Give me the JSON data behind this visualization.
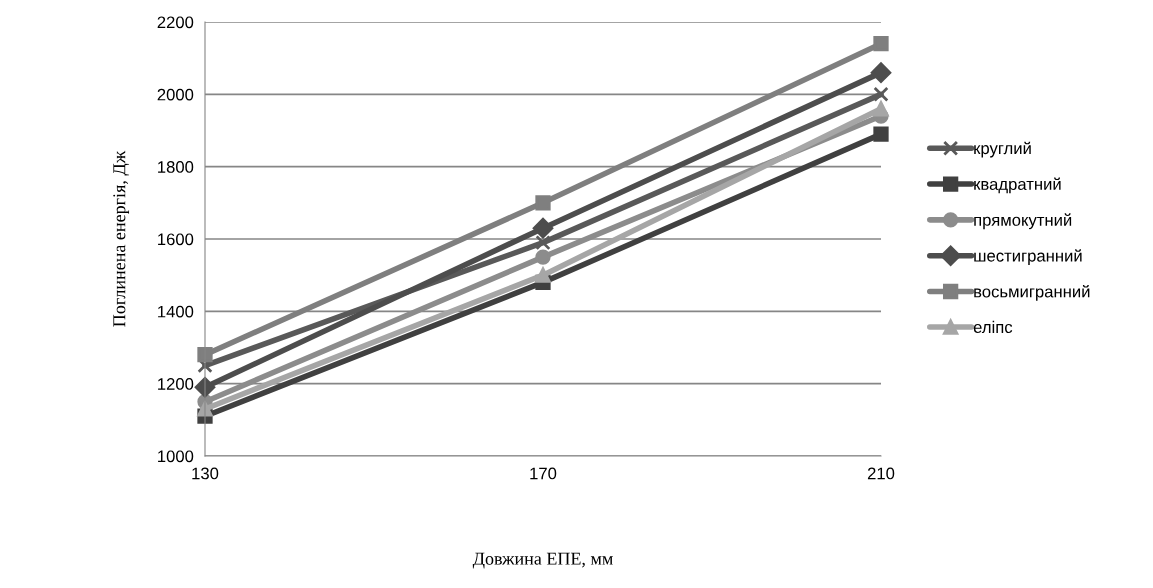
{
  "chart_data": {
    "type": "line",
    "xlabel": "Довжина ЕПЕ, мм",
    "ylabel": "Поглинена енергія, Дж",
    "x": [
      130,
      170,
      210
    ],
    "xlim": [
      130,
      210
    ],
    "xticks": [
      130,
      170,
      210
    ],
    "ylim": [
      1000,
      2200
    ],
    "yticks": [
      1000,
      1200,
      1400,
      1600,
      1800,
      2000,
      2200
    ],
    "grid": "y",
    "legend": "right",
    "series": [
      {
        "name": "круглий",
        "color": "#595959",
        "marker": "cross",
        "values": [
          1250,
          1590,
          2000
        ]
      },
      {
        "name": "квадратний",
        "color": "#404040",
        "marker": "square",
        "values": [
          1110,
          1480,
          1890
        ]
      },
      {
        "name": "прямокутний",
        "color": "#8c8c8c",
        "marker": "circle",
        "values": [
          1150,
          1550,
          1940
        ]
      },
      {
        "name": "шестигранний",
        "color": "#4d4d4d",
        "marker": "diamond",
        "values": [
          1190,
          1630,
          2060
        ]
      },
      {
        "name": "восьмигранний",
        "color": "#7f7f7f",
        "marker": "square",
        "values": [
          1280,
          1700,
          2140
        ]
      },
      {
        "name": "еліпс",
        "color": "#a6a6a6",
        "marker": "triangle",
        "values": [
          1130,
          1500,
          1960
        ]
      }
    ]
  }
}
